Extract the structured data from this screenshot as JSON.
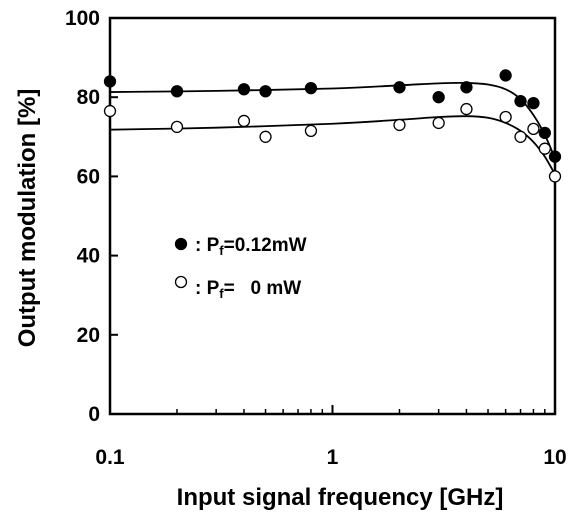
{
  "chart_data": {
    "type": "scatter",
    "xlabel": "Input signal frequency [GHz]",
    "ylabel": "Output modulation [%]",
    "x_scale": "log",
    "xlim": [
      0.1,
      10
    ],
    "ylim": [
      0,
      100
    ],
    "x_ticks": [
      {
        "value": 0.1,
        "label": "0.1"
      },
      {
        "value": 1,
        "label": "1"
      },
      {
        "value": 10,
        "label": "10"
      }
    ],
    "y_ticks": [
      {
        "value": 0,
        "label": "0"
      },
      {
        "value": 20,
        "label": "20"
      },
      {
        "value": 40,
        "label": "40"
      },
      {
        "value": 60,
        "label": "60"
      },
      {
        "value": 80,
        "label": "80"
      },
      {
        "value": 100,
        "label": "100"
      }
    ],
    "grid": false,
    "legend_placement": "center-left",
    "series": [
      {
        "name": "Pf=0.12mW",
        "legend_prefix": ": P",
        "legend_sub": "f",
        "legend_suffix": "=0.12mW",
        "marker": "filled-circle",
        "color": "#000000",
        "points": [
          [
            0.1,
            84
          ],
          [
            0.2,
            81.5
          ],
          [
            0.4,
            82
          ],
          [
            0.5,
            81.5
          ],
          [
            0.8,
            82.3
          ],
          [
            2,
            82.5
          ],
          [
            3,
            80
          ],
          [
            4,
            82.5
          ],
          [
            6,
            85.5
          ],
          [
            7,
            79
          ],
          [
            8,
            78.5
          ],
          [
            9,
            71
          ],
          [
            10,
            65
          ]
        ],
        "fit": [
          [
            0.1,
            81.3
          ],
          [
            0.3,
            81.6
          ],
          [
            1,
            82.2
          ],
          [
            2,
            83
          ],
          [
            3,
            83.5
          ],
          [
            4,
            83.6
          ],
          [
            5,
            83.2
          ],
          [
            6,
            82
          ],
          [
            7,
            79.5
          ],
          [
            8,
            75.5
          ],
          [
            9,
            70.5
          ],
          [
            10,
            64.5
          ]
        ]
      },
      {
        "name": "Pf=   0 mW",
        "legend_prefix": ": P",
        "legend_sub": "f",
        "legend_suffix": "=   0 mW",
        "marker": "open-circle",
        "color": "#000000",
        "points": [
          [
            0.1,
            76.5
          ],
          [
            0.2,
            72.5
          ],
          [
            0.4,
            74
          ],
          [
            0.5,
            70
          ],
          [
            0.8,
            71.5
          ],
          [
            2,
            73
          ],
          [
            3,
            73.5
          ],
          [
            4,
            77
          ],
          [
            6,
            75
          ],
          [
            7,
            70
          ],
          [
            8,
            72
          ],
          [
            9,
            67
          ],
          [
            10,
            60
          ]
        ],
        "fit": [
          [
            0.1,
            71.8
          ],
          [
            0.3,
            72.3
          ],
          [
            1,
            73.3
          ],
          [
            2,
            74.3
          ],
          [
            3,
            75
          ],
          [
            4,
            75.2
          ],
          [
            5,
            74.8
          ],
          [
            6,
            73.5
          ],
          [
            7,
            71.5
          ],
          [
            8,
            68.7
          ],
          [
            9,
            65
          ],
          [
            10,
            60.5
          ]
        ]
      }
    ]
  }
}
